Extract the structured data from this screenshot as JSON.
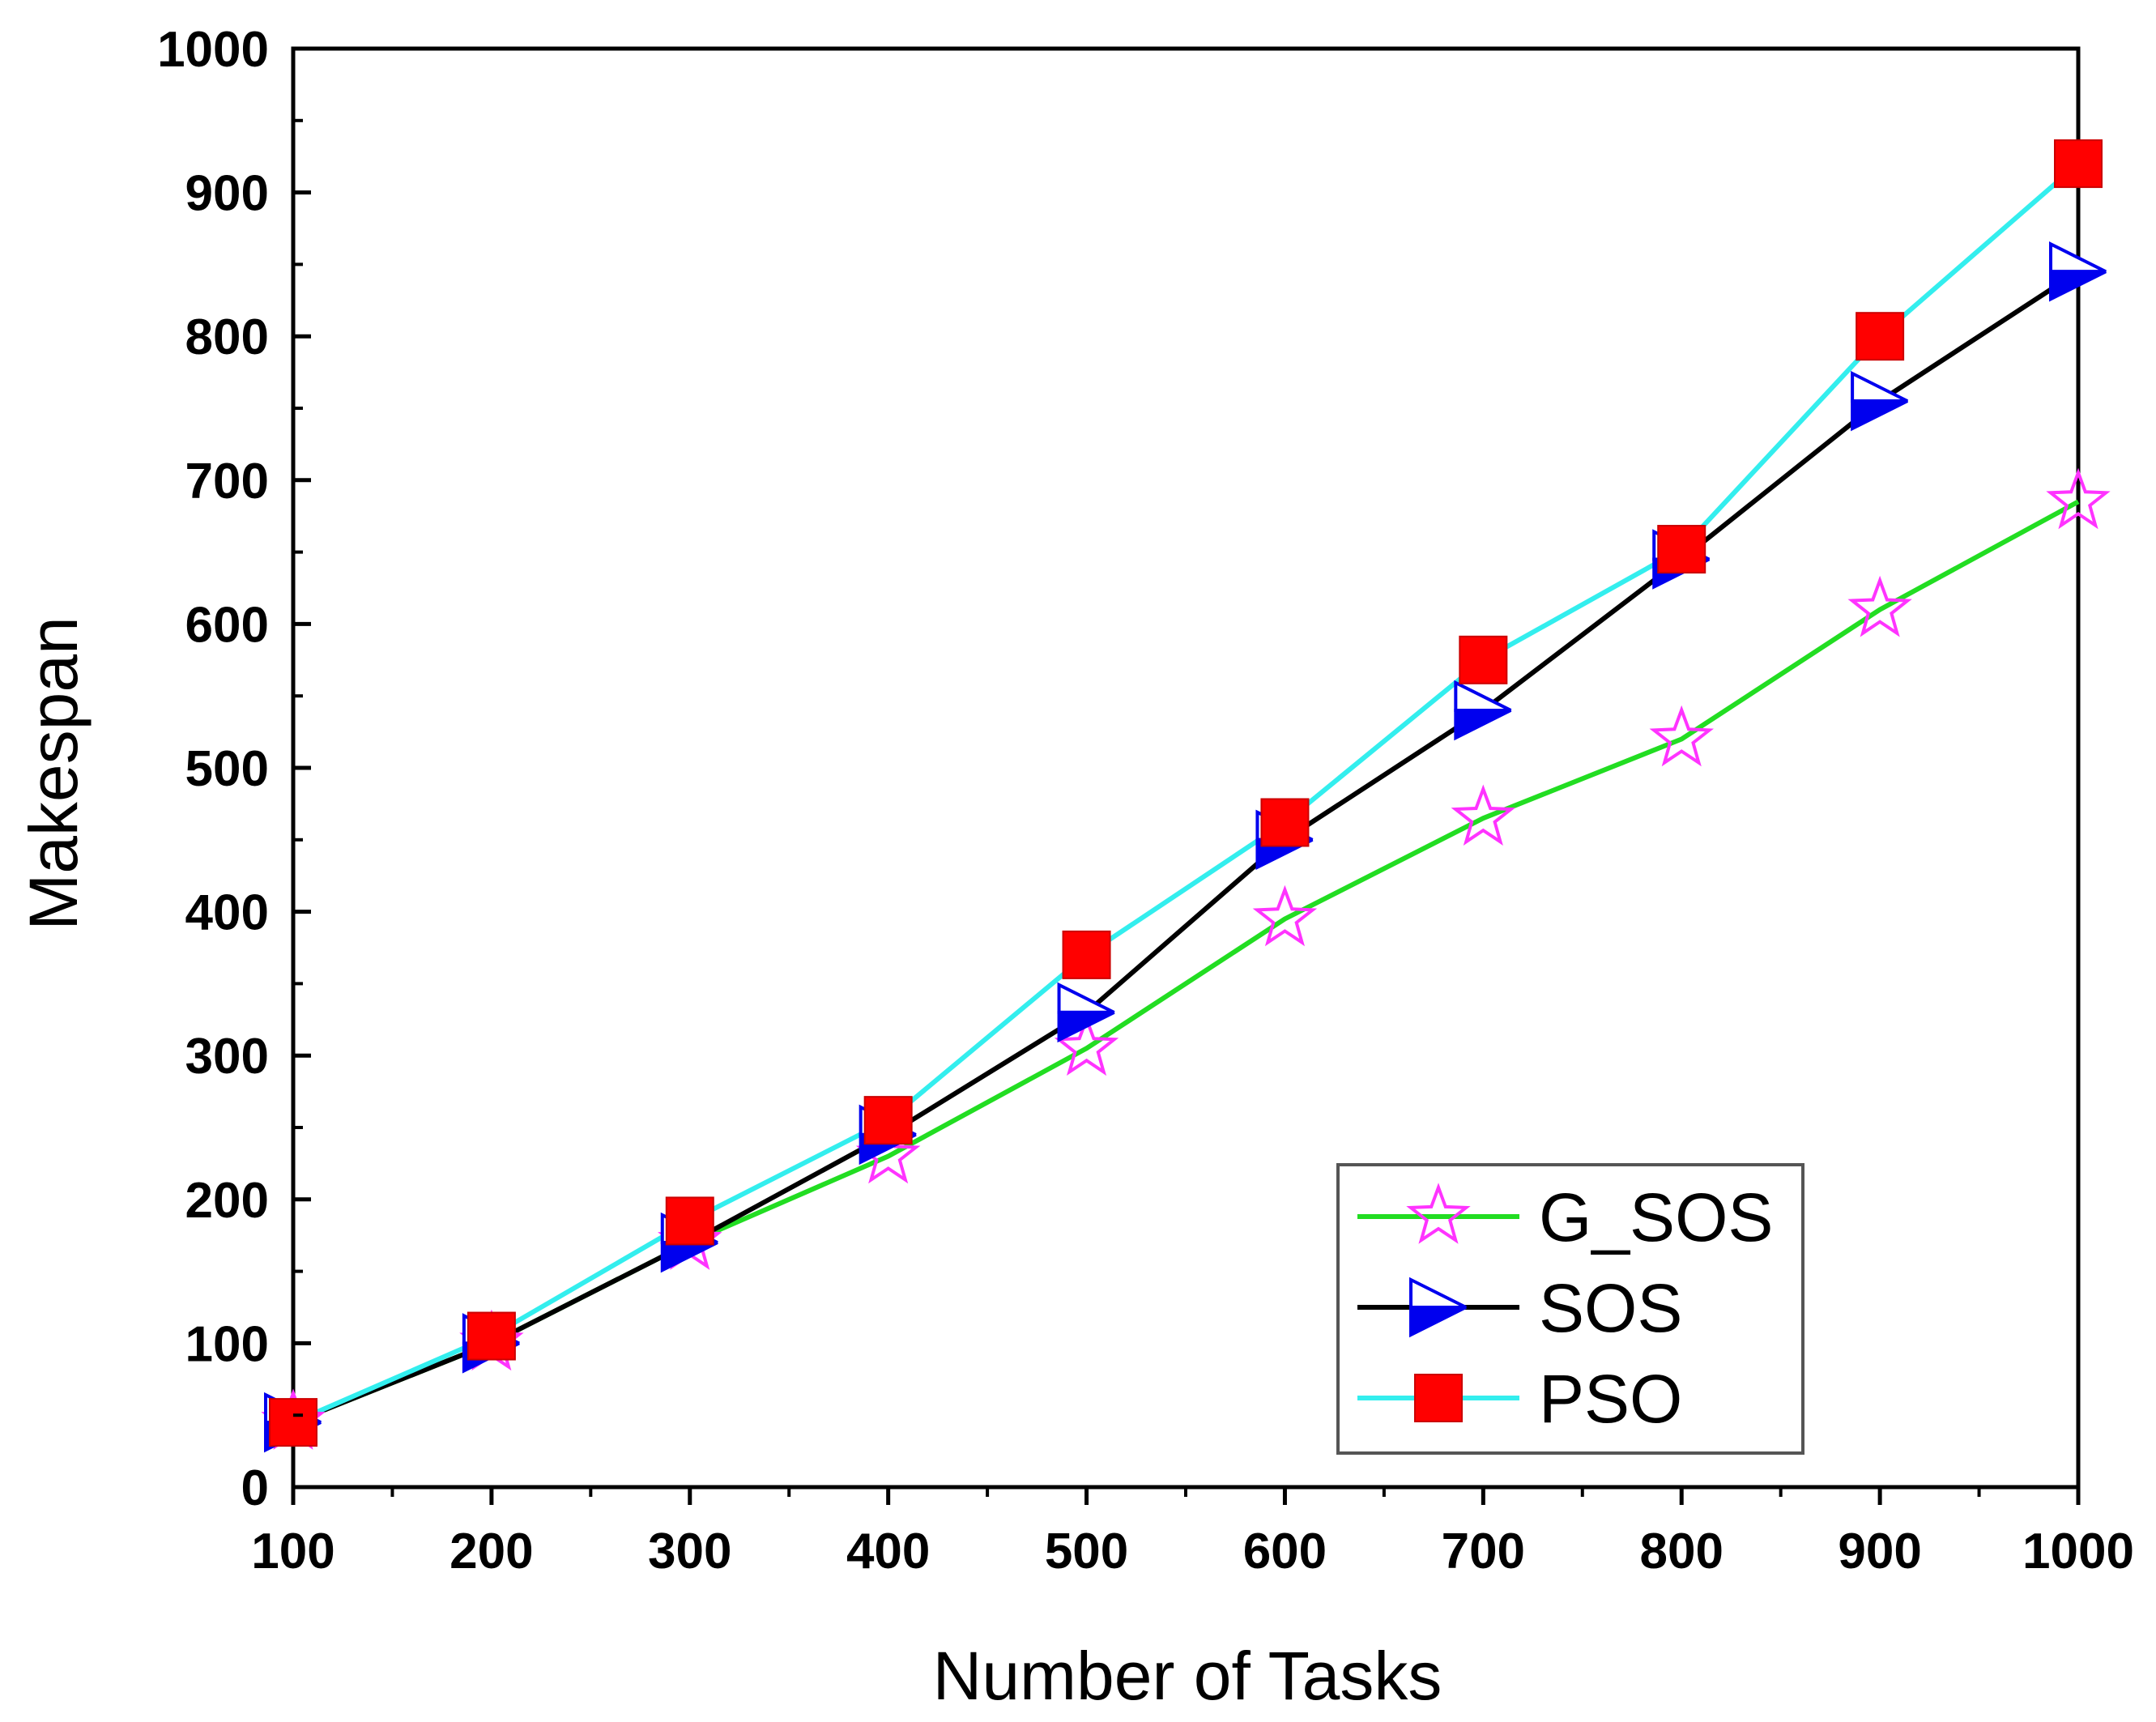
{
  "chart_data": {
    "type": "line",
    "title": "",
    "xlabel": "Number of Tasks",
    "ylabel": "Makespan",
    "x": [
      100,
      200,
      300,
      400,
      500,
      600,
      700,
      800,
      900,
      1000
    ],
    "xlim": [
      100,
      1000
    ],
    "ylim": [
      0,
      1000
    ],
    "xticks": [
      "100",
      "200",
      "300",
      "400",
      "500",
      "600",
      "700",
      "800",
      "900",
      "1000"
    ],
    "yticks": [
      "0",
      "100",
      "200",
      "300",
      "400",
      "500",
      "600",
      "700",
      "800",
      "900",
      "1000"
    ],
    "grid": false,
    "legend_position": "bottom-right",
    "series": [
      {
        "name": "G_SOS",
        "line_color": "#22dd22",
        "marker": "star",
        "marker_color": "#ff33ff",
        "values": [
          45,
          100,
          170,
          230,
          305,
          395,
          465,
          520,
          610,
          685
        ]
      },
      {
        "name": "SOS",
        "line_color": "#000000",
        "marker": "triangle-right",
        "marker_color": "#0000ee",
        "values": [
          45,
          100,
          170,
          245,
          330,
          450,
          540,
          645,
          755,
          845
        ]
      },
      {
        "name": "PSO",
        "line_color": "#33eeee",
        "marker": "square",
        "marker_color": "#ff0000",
        "values": [
          45,
          105,
          185,
          255,
          370,
          462,
          575,
          652,
          800,
          920
        ]
      }
    ]
  }
}
